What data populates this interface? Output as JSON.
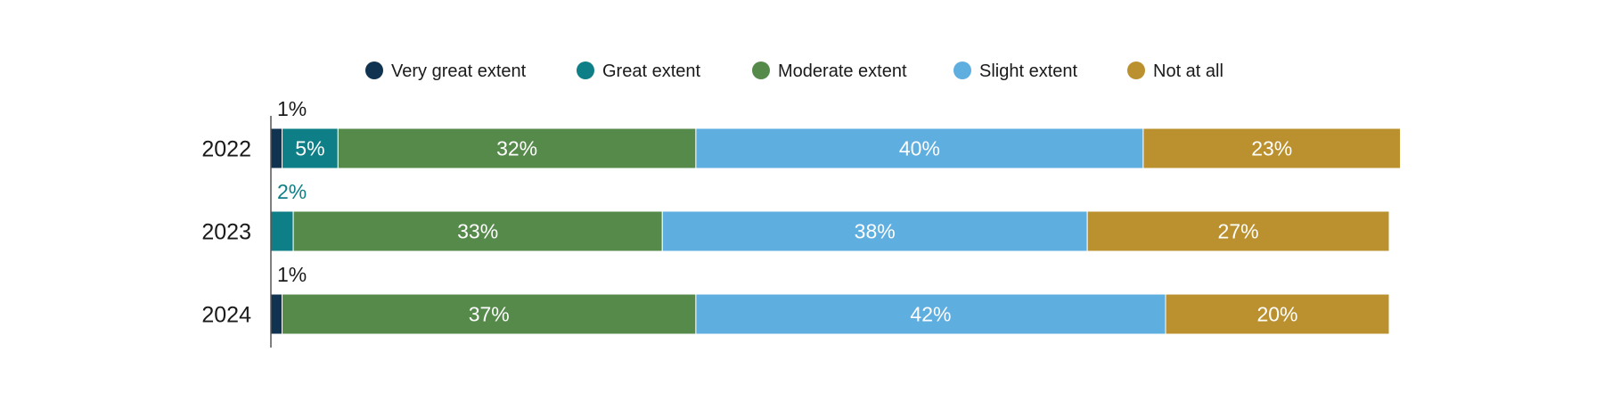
{
  "chart_data": {
    "type": "bar",
    "orientation": "horizontal",
    "stacked": true,
    "categories": [
      "2022",
      "2023",
      "2024"
    ],
    "series": [
      {
        "name": "Very great extent",
        "color": "#0f3350",
        "values": [
          1,
          0,
          1
        ],
        "labels": [
          "1%",
          "",
          "1%"
        ]
      },
      {
        "name": "Great extent",
        "color": "#0e7f86",
        "values": [
          5,
          2,
          0
        ],
        "labels": [
          "5%",
          "2%",
          ""
        ]
      },
      {
        "name": "Moderate extent",
        "color": "#568a4b",
        "values": [
          32,
          33,
          37
        ],
        "labels": [
          "32%",
          "33%",
          "37%"
        ]
      },
      {
        "name": "Slight extent",
        "color": "#5faee0",
        "values": [
          40,
          38,
          42
        ],
        "labels": [
          "40%",
          "38%",
          "42%"
        ]
      },
      {
        "name": "Not at all",
        "color": "#bb9130",
        "values": [
          23,
          27,
          20
        ],
        "labels": [
          "23%",
          "27%",
          "20%"
        ]
      }
    ],
    "xlim": [
      0,
      100
    ],
    "grid": false,
    "legend_position": "top"
  }
}
